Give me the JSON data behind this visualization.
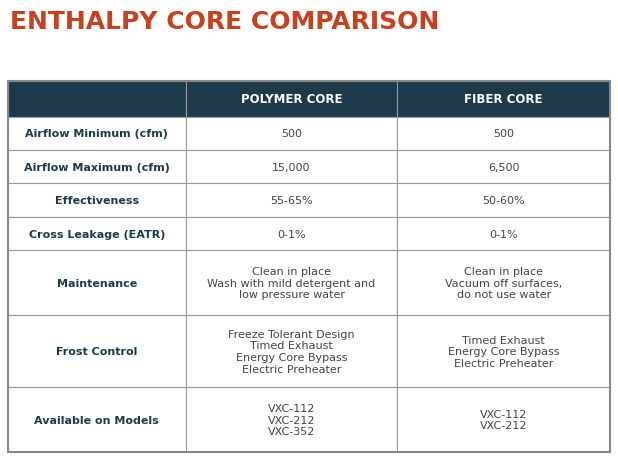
{
  "title": "ENTHALPY CORE COMPARISON",
  "title_color": "#C8401E",
  "title_fontsize": 18,
  "header_bg_color": "#1C3A4A",
  "header_text_color": "#FFFFFF",
  "header_fontsize": 8.5,
  "row_label_color": "#1C3A4A",
  "row_value_color": "#444444",
  "border_color": "#999999",
  "bg_color": "#FFFFFF",
  "outer_border_color": "#888888",
  "headers": [
    "POLYMER CORE",
    "FIBER CORE"
  ],
  "rows": [
    {
      "label": "Airflow Minimum (cfm)",
      "polymer": "500",
      "fiber": "500"
    },
    {
      "label": "Airflow Maximum (cfm)",
      "polymer": "15,000",
      "fiber": "6,500"
    },
    {
      "label": "Effectiveness",
      "polymer": "55-65%",
      "fiber": "50-60%"
    },
    {
      "label": "Cross Leakage (EATR)",
      "polymer": "0-1%",
      "fiber": "0-1%"
    },
    {
      "label": "Maintenance",
      "polymer": "Clean in place\nWash with mild detergent and\nlow pressure water",
      "fiber": "Clean in place\nVacuum off surfaces,\ndo not use water"
    },
    {
      "label": "Frost Control",
      "polymer": "Freeze Tolerant Design\nTimed Exhaust\nEnergy Core Bypass\nElectric Preheater",
      "fiber": "Timed Exhaust\nEnergy Core Bypass\nElectric Preheater"
    },
    {
      "label": "Available on Models",
      "polymer": "VXC-112\nVXC-212\nVXC-352",
      "fiber": "VXC-112\nVXC-212"
    }
  ],
  "label_fontsize": 8.0,
  "value_fontsize": 8.0
}
